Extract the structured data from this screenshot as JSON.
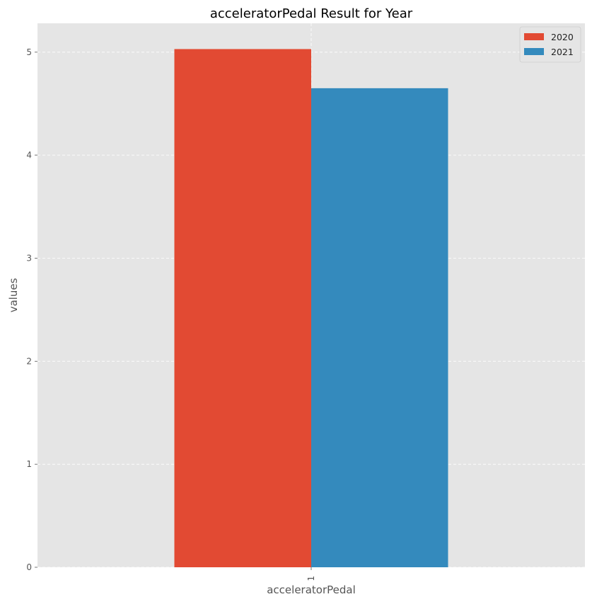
{
  "chart_data": {
    "type": "bar",
    "title": "acceleratorPedal Result for Year",
    "xlabel": "acceleratorPedal",
    "ylabel": "values",
    "categories": [
      "1"
    ],
    "series": [
      {
        "name": "2020",
        "values": [
          5.03
        ],
        "color": "#E24A33"
      },
      {
        "name": "2021",
        "values": [
          4.65
        ],
        "color": "#348ABD"
      }
    ],
    "ylim": [
      0,
      5.28
    ],
    "yticks": [
      0,
      1,
      2,
      3,
      4,
      5
    ],
    "grid": true,
    "legend_position": "top-right",
    "background": "#E5E5E5",
    "gridline_color": "#FFFFFF"
  }
}
